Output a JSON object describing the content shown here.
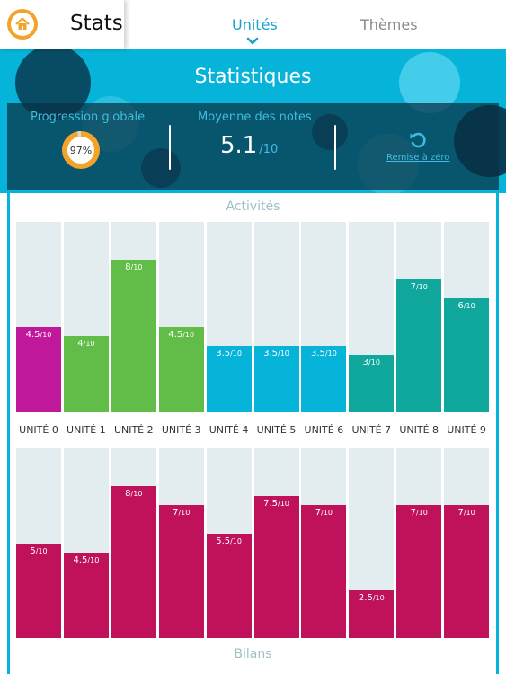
{
  "nav": {
    "title": "Stats",
    "tabs": [
      {
        "label": "Unités",
        "active": true
      },
      {
        "label": "Thèmes",
        "active": false
      }
    ],
    "home_icon": "home-icon"
  },
  "header": {
    "title": "Statistiques",
    "progress_label": "Progression globale",
    "progress_value": "97%",
    "progress_fraction": 0.97,
    "average_label": "Moyenne des notes",
    "average_value": "5.1",
    "average_unit": "/10",
    "reset_label": "Remise à zéro",
    "reset_icon": "reset-icon"
  },
  "colors": {
    "brand": "#06b3d9",
    "orange": "#f2a32a",
    "magenta": "#c0125a",
    "purple": "#c0189a",
    "green": "#62bd48",
    "blue": "#06b3d9",
    "teal": "#10a79c",
    "track": "#e3ecee"
  },
  "chart_data": [
    {
      "type": "bar",
      "title": "Activités",
      "categories": [
        "UNITÉ 0",
        "UNITÉ 1",
        "UNITÉ 2",
        "UNITÉ 3",
        "UNITÉ 4",
        "UNITÉ 5",
        "UNITÉ 6",
        "UNITÉ 7",
        "UNITÉ 8",
        "UNITÉ 9"
      ],
      "values": [
        4.5,
        4,
        8,
        4.5,
        3.5,
        3.5,
        3.5,
        3,
        7,
        6
      ],
      "labels": [
        "4.5",
        "4",
        "8",
        "4.5",
        "3.5",
        "3.5",
        "3.5",
        "3",
        "7",
        "6"
      ],
      "value_suffix": "/10",
      "ylim": [
        0,
        10
      ],
      "bar_colors": [
        "#c0189a",
        "#62bd48",
        "#62bd48",
        "#62bd48",
        "#06b3d9",
        "#06b3d9",
        "#06b3d9",
        "#10a79c",
        "#10a79c",
        "#10a79c"
      ]
    },
    {
      "type": "bar",
      "title": "Bilans",
      "categories": [
        "UNITÉ 0",
        "UNITÉ 1",
        "UNITÉ 2",
        "UNITÉ 3",
        "UNITÉ 4",
        "UNITÉ 5",
        "UNITÉ 6",
        "UNITÉ 7",
        "UNITÉ 8",
        "UNITÉ 9"
      ],
      "values": [
        5,
        4.5,
        8,
        7,
        5.5,
        7.5,
        7,
        2.5,
        7,
        7
      ],
      "labels": [
        "5",
        "4.5",
        "8",
        "7",
        "5.5",
        "7.5",
        "7",
        "2.5",
        "7",
        "7"
      ],
      "value_suffix": "/10",
      "ylim": [
        0,
        10
      ],
      "bar_colors": [
        "#c0125a",
        "#c0125a",
        "#c0125a",
        "#c0125a",
        "#c0125a",
        "#c0125a",
        "#c0125a",
        "#c0125a",
        "#c0125a",
        "#c0125a"
      ]
    }
  ]
}
